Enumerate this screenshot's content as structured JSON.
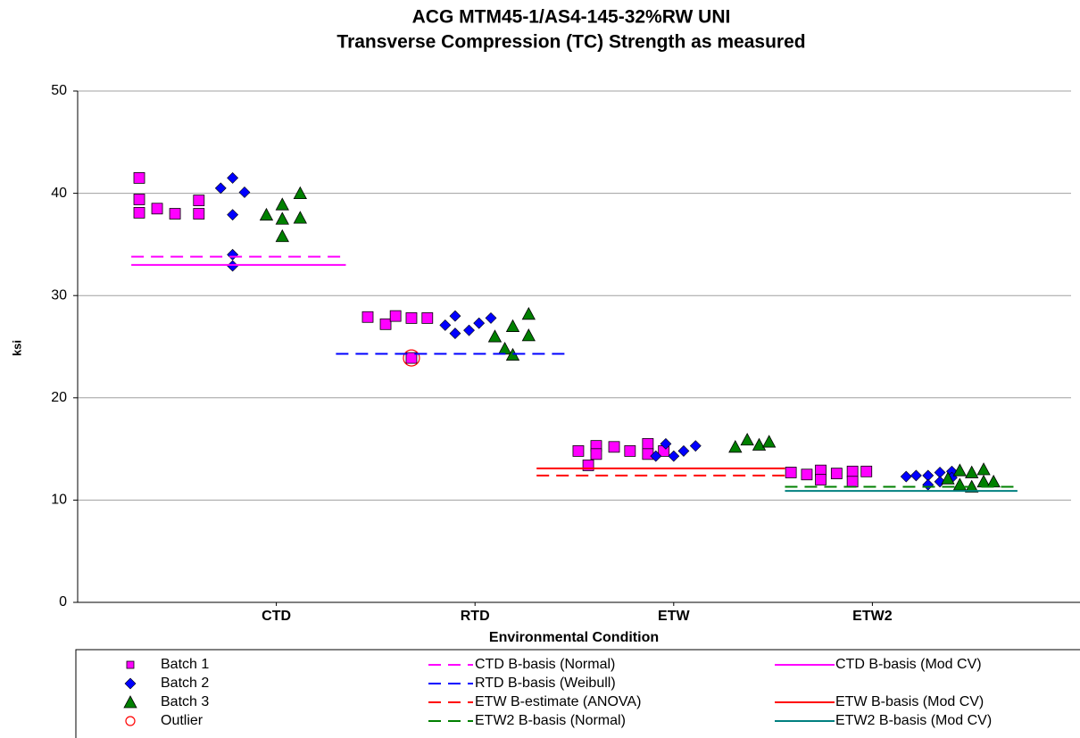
{
  "chart_data": {
    "type": "scatter",
    "title": [
      "ACG MTM45-1/AS4-145-32%RW UNI",
      "Transverse Compression (TC) Strength as measured"
    ],
    "x_label": "Environmental Condition",
    "y_label": "ksi",
    "xlim": [
      0,
      5
    ],
    "xticks": [
      {
        "value": 1,
        "label": "CTD"
      },
      {
        "value": 2,
        "label": "RTD"
      },
      {
        "value": 3,
        "label": "ETW"
      },
      {
        "value": 4,
        "label": "ETW2"
      }
    ],
    "ylim": [
      0,
      50
    ],
    "yticks": [
      0,
      10,
      20,
      30,
      40,
      50
    ],
    "grid": true,
    "legend": "bottom",
    "series": [
      {
        "name": "Batch 1",
        "color": "#ff00ff",
        "style": "square",
        "x": [
          0.31,
          0.31,
          0.31,
          0.4,
          0.49,
          0.61,
          0.61,
          1.46,
          1.55,
          1.6,
          1.68,
          1.68,
          1.76,
          2.52,
          2.61,
          2.61,
          2.7,
          2.78,
          2.87,
          2.87,
          2.95,
          2.57,
          3.59,
          3.67,
          3.74,
          3.74,
          3.82,
          3.9,
          3.9,
          3.97
        ],
        "values": [
          41.5,
          39.4,
          38.1,
          38.5,
          38.0,
          39.3,
          38.0,
          27.9,
          27.2,
          28.0,
          27.8,
          23.9,
          27.8,
          14.8,
          15.3,
          14.5,
          15.2,
          14.8,
          15.5,
          14.5,
          14.8,
          13.4,
          12.7,
          12.5,
          12.9,
          12.0,
          12.6,
          12.8,
          11.8,
          12.8
        ]
      },
      {
        "name": "Batch 2",
        "color": "#0000ff",
        "style": "diamond",
        "x": [
          0.72,
          0.78,
          0.78,
          0.78,
          0.78,
          0.84,
          1.85,
          1.9,
          1.9,
          1.97,
          2.02,
          2.08,
          2.91,
          2.96,
          3.0,
          3.05,
          3.11,
          4.17,
          4.22,
          4.28,
          4.28,
          4.34,
          4.34,
          4.4,
          4.4
        ],
        "values": [
          40.5,
          41.5,
          37.9,
          34.0,
          32.9,
          40.1,
          27.1,
          28.0,
          26.3,
          26.6,
          27.3,
          27.8,
          14.3,
          15.5,
          14.3,
          14.8,
          15.3,
          12.3,
          12.4,
          12.4,
          11.5,
          12.7,
          11.8,
          12.8,
          12.2
        ]
      },
      {
        "name": "Batch 3",
        "color": "#008000",
        "style": "triangle",
        "x": [
          0.95,
          1.03,
          1.03,
          1.03,
          1.12,
          1.12,
          2.1,
          2.15,
          2.19,
          2.19,
          2.27,
          2.27,
          3.31,
          3.37,
          3.43,
          3.48,
          4.38,
          4.44,
          4.44,
          4.5,
          4.5,
          4.56,
          4.56,
          4.61
        ],
        "values": [
          37.9,
          38.9,
          37.5,
          35.8,
          40.0,
          37.6,
          26.0,
          24.8,
          27.0,
          24.2,
          28.2,
          26.1,
          15.2,
          15.9,
          15.4,
          15.7,
          12.1,
          12.9,
          11.5,
          12.7,
          11.3,
          13.0,
          11.8,
          11.8
        ]
      },
      {
        "name": "Outlier",
        "color": "#ff0000",
        "style": "circle-open",
        "x": [
          1.68
        ],
        "values": [
          23.9
        ]
      },
      {
        "name": "CTD B-basis (Normal)",
        "color": "#ff00ff",
        "style": "dashed",
        "x": [
          0.27,
          1.35
        ],
        "values": [
          33.8,
          33.8
        ]
      },
      {
        "name": "RTD B-basis (Weibull)",
        "color": "#0000ff",
        "style": "dashed",
        "x": [
          1.3,
          2.47
        ],
        "values": [
          24.3,
          24.3
        ]
      },
      {
        "name": "ETW B-estimate (ANOVA)",
        "color": "#ff0000",
        "style": "dashed",
        "x": [
          2.31,
          3.56
        ],
        "values": [
          12.4,
          12.4
        ]
      },
      {
        "name": "ETW2 B-basis (Normal)",
        "color": "#008000",
        "style": "dashed",
        "x": [
          3.56,
          4.73
        ],
        "values": [
          11.3,
          11.3
        ]
      },
      {
        "name": "CTD B-basis (Mod CV)",
        "color": "#ff00ff",
        "style": "solid",
        "x": [
          0.27,
          1.35
        ],
        "values": [
          33.0,
          33.0
        ]
      },
      {
        "name": "ETW B-basis (Mod CV)",
        "color": "#ff0000",
        "style": "solid",
        "x": [
          2.31,
          3.56
        ],
        "values": [
          13.1,
          13.1
        ]
      },
      {
        "name": "ETW2 B-basis (Mod CV)",
        "color": "#008080",
        "style": "solid",
        "x": [
          3.56,
          4.73
        ],
        "values": [
          10.9,
          10.9
        ]
      }
    ]
  }
}
